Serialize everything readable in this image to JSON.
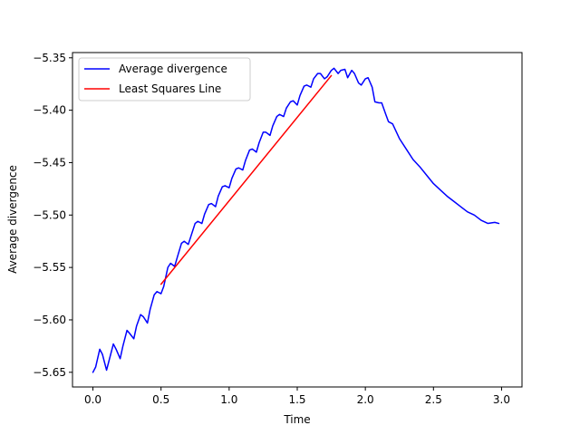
{
  "chart_data": {
    "type": "line",
    "title": "",
    "xlabel": "Time",
    "ylabel": "Average divergence",
    "xlim": [
      -0.15,
      3.15
    ],
    "ylim": [
      -5.664,
      -5.345
    ],
    "x_ticks": [
      0.0,
      0.5,
      1.0,
      1.5,
      2.0,
      2.5,
      3.0
    ],
    "x_tick_labels": [
      "0.0",
      "0.5",
      "1.0",
      "1.5",
      "2.0",
      "2.5",
      "3.0"
    ],
    "y_ticks": [
      -5.65,
      -5.6,
      -5.55,
      -5.5,
      -5.45,
      -5.4,
      -5.35
    ],
    "y_tick_labels": [
      "−5.65",
      "−5.60",
      "−5.55",
      "−5.50",
      "−5.45",
      "−5.40",
      "−5.35"
    ],
    "grid": false,
    "legend_position": "upper-left",
    "series": [
      {
        "name": "Average divergence",
        "color": "#0000ff",
        "x": [
          0.0,
          0.02,
          0.05,
          0.07,
          0.1,
          0.12,
          0.15,
          0.17,
          0.2,
          0.22,
          0.25,
          0.27,
          0.3,
          0.32,
          0.35,
          0.37,
          0.4,
          0.42,
          0.45,
          0.47,
          0.5,
          0.52,
          0.55,
          0.57,
          0.6,
          0.62,
          0.65,
          0.67,
          0.7,
          0.72,
          0.75,
          0.77,
          0.8,
          0.82,
          0.85,
          0.87,
          0.9,
          0.92,
          0.95,
          0.97,
          1.0,
          1.02,
          1.05,
          1.07,
          1.1,
          1.12,
          1.15,
          1.17,
          1.2,
          1.22,
          1.25,
          1.27,
          1.3,
          1.32,
          1.35,
          1.37,
          1.4,
          1.42,
          1.45,
          1.47,
          1.5,
          1.52,
          1.55,
          1.57,
          1.6,
          1.62,
          1.65,
          1.67,
          1.7,
          1.72,
          1.75,
          1.77,
          1.8,
          1.82,
          1.85,
          1.87,
          1.9,
          1.92,
          1.95,
          1.97,
          2.0,
          2.02,
          2.05,
          2.07,
          2.1,
          2.12,
          2.15,
          2.17,
          2.2,
          2.25,
          2.3,
          2.35,
          2.4,
          2.45,
          2.5,
          2.55,
          2.6,
          2.65,
          2.7,
          2.75,
          2.8,
          2.85,
          2.9,
          2.95,
          2.98
        ],
        "y": [
          -5.65,
          -5.645,
          -5.628,
          -5.633,
          -5.648,
          -5.638,
          -5.623,
          -5.628,
          -5.637,
          -5.625,
          -5.61,
          -5.613,
          -5.618,
          -5.606,
          -5.595,
          -5.597,
          -5.603,
          -5.59,
          -5.576,
          -5.573,
          -5.575,
          -5.568,
          -5.55,
          -5.546,
          -5.549,
          -5.54,
          -5.527,
          -5.525,
          -5.528,
          -5.52,
          -5.508,
          -5.506,
          -5.508,
          -5.499,
          -5.49,
          -5.489,
          -5.492,
          -5.482,
          -5.473,
          -5.472,
          -5.474,
          -5.465,
          -5.456,
          -5.455,
          -5.457,
          -5.448,
          -5.438,
          -5.437,
          -5.44,
          -5.431,
          -5.421,
          -5.421,
          -5.424,
          -5.415,
          -5.406,
          -5.404,
          -5.406,
          -5.398,
          -5.392,
          -5.391,
          -5.395,
          -5.386,
          -5.377,
          -5.376,
          -5.378,
          -5.37,
          -5.365,
          -5.365,
          -5.37,
          -5.368,
          -5.362,
          -5.36,
          -5.365,
          -5.362,
          -5.361,
          -5.369,
          -5.362,
          -5.365,
          -5.374,
          -5.376,
          -5.37,
          -5.369,
          -5.378,
          -5.392,
          -5.393,
          -5.393,
          -5.404,
          -5.411,
          -5.413,
          -5.427,
          -5.437,
          -5.447,
          -5.454,
          -5.462,
          -5.47,
          -5.476,
          -5.482,
          -5.487,
          -5.492,
          -5.497,
          -5.5,
          -5.505,
          -5.508,
          -5.507,
          -5.508
        ]
      },
      {
        "name": "Least Squares Line",
        "color": "#ff0000",
        "x": [
          0.5,
          1.75
        ],
        "y": [
          -5.566,
          -5.367
        ]
      }
    ]
  }
}
